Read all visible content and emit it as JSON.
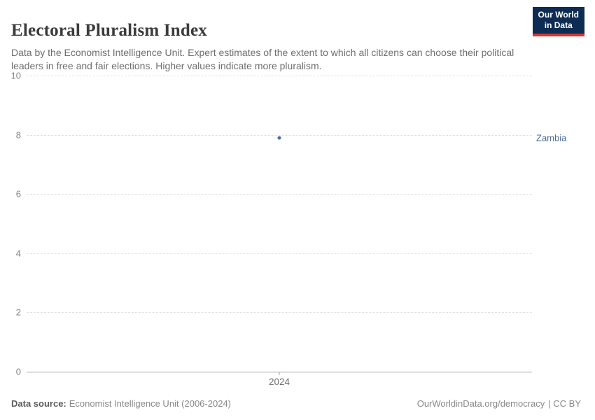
{
  "header": {
    "title": "Electoral Pluralism Index",
    "subtitle": "Data by the Economist Intelligence Unit. Expert estimates of the extent to which all citizens can choose their political leaders in free and fair elections. Higher values indicate more pluralism.",
    "logo": {
      "line1": "Our World",
      "line2": "in Data",
      "bg_color": "#0d2c54",
      "accent_color": "#d8352e"
    }
  },
  "chart_data": {
    "type": "scatter",
    "title": "Electoral Pluralism Index",
    "x": [
      2024
    ],
    "series": [
      {
        "name": "Zambia",
        "values": [
          7.9
        ],
        "color": "#4c6a9c"
      }
    ],
    "ylim": [
      0,
      10
    ],
    "yticks": [
      10,
      8,
      6,
      4,
      2,
      0
    ],
    "xticks": [
      "2024"
    ],
    "xlabel": "",
    "ylabel": "",
    "grid": "horizontal-dashed",
    "gridline_color": "#e2e2e2",
    "zero_line_color": "#a5a5a5",
    "legend_position": "right-of-point"
  },
  "footer": {
    "source_label": "Data source:",
    "source_text": "Economist Intelligence Unit (2006-2024)",
    "attribution_link": "OurWorldinData.org/democracy",
    "attribution_license": "| CC BY"
  }
}
